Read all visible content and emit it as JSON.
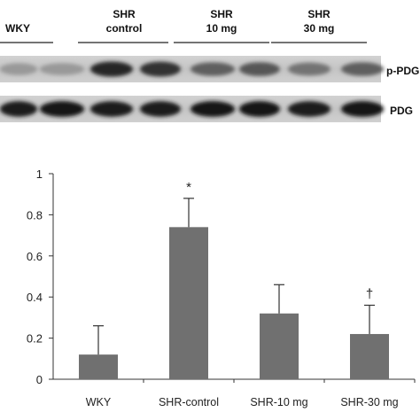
{
  "blot": {
    "groups": [
      "WKY",
      "SHR control",
      "SHR 10 mg",
      "SHR 30 mg"
    ],
    "group_lines": [
      [
        "WKY"
      ],
      [
        "SHR",
        "control"
      ],
      [
        "SHR",
        "10 mg"
      ],
      [
        "SHR",
        "30 mg"
      ]
    ],
    "rows": [
      {
        "label": "p-PDG",
        "intensity": [
          0.25,
          0.25,
          0.85,
          0.8,
          0.55,
          0.6,
          0.45,
          0.55
        ]
      },
      {
        "label": "PDG",
        "intensity": [
          0.9,
          0.95,
          0.9,
          0.9,
          0.95,
          0.95,
          0.9,
          0.95
        ]
      }
    ]
  },
  "chart_data": {
    "type": "bar",
    "categories": [
      "WKY",
      "SHR-control",
      "SHR-10 mg",
      "SHR-30 mg"
    ],
    "values": [
      0.12,
      0.74,
      0.32,
      0.22
    ],
    "errors": [
      0.14,
      0.14,
      0.14,
      0.14
    ],
    "significance": [
      "",
      "*",
      "",
      "†"
    ],
    "ylim": [
      0,
      1
    ],
    "yticks": [
      0,
      0.2,
      0.4,
      0.6,
      0.8,
      1
    ],
    "ytick_labels": [
      "0",
      "0.2",
      "0.4",
      "0.6",
      "0.8",
      "1"
    ],
    "bar_color": "#707070",
    "grid": false,
    "title": "",
    "xlabel": "",
    "ylabel": ""
  }
}
